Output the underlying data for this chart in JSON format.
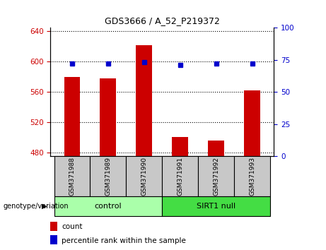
{
  "title": "GDS3666 / A_52_P219372",
  "samples": [
    "GSM371988",
    "GSM371989",
    "GSM371990",
    "GSM371991",
    "GSM371992",
    "GSM371993"
  ],
  "count_values": [
    580,
    578,
    622,
    500,
    496,
    562
  ],
  "percentile_values": [
    72,
    72,
    73,
    71,
    72,
    72
  ],
  "ylim_left": [
    475,
    645
  ],
  "ylim_right": [
    0,
    100
  ],
  "yticks_left": [
    480,
    520,
    560,
    600,
    640
  ],
  "yticks_right": [
    0,
    25,
    50,
    75,
    100
  ],
  "bar_color": "#cc0000",
  "marker_color": "#0000cc",
  "bar_width": 0.45,
  "groups": [
    {
      "label": "control",
      "indices": [
        0,
        1,
        2
      ],
      "color": "#aaffaa"
    },
    {
      "label": "SIRT1 null",
      "indices": [
        3,
        4,
        5
      ],
      "color": "#44dd44"
    }
  ],
  "group_label": "genotype/variation",
  "legend_count": "count",
  "legend_percentile": "percentile rank within the sample",
  "grid_style": "dotted",
  "grid_color": "#000000",
  "tick_color_left": "#cc0000",
  "tick_color_right": "#0000cc",
  "bg_label": "#c8c8c8"
}
